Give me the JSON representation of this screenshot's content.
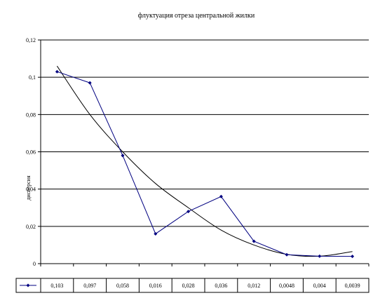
{
  "chart_data": {
    "type": "line",
    "title": "флуктуация отреза центральной жилки",
    "ylabel": "дисперсия",
    "ylim": [
      0,
      0.12
    ],
    "y_ticks": [
      "0",
      "0,02",
      "0,04",
      "0,06",
      "0,08",
      "0,1",
      "0,12"
    ],
    "grid": true,
    "legend": "data-table-below",
    "series": [
      {
        "values": [
          0.103,
          0.097,
          0.058,
          0.016,
          0.028,
          0.036,
          0.012,
          0.0048,
          0.004,
          0.0039
        ],
        "color": "#000080",
        "marker": "diamond"
      }
    ],
    "trendline": {
      "values": [
        0.106,
        0.08,
        0.06,
        0.043,
        0.03,
        0.018,
        0.01,
        0.005,
        0.004,
        0.0065
      ],
      "color": "#000000"
    },
    "table_labels": [
      "0,103",
      "0,097",
      "0,058",
      "0,016",
      "0,028",
      "0,036",
      "0,012",
      "0,0048",
      "0,004",
      "0,0039"
    ]
  }
}
